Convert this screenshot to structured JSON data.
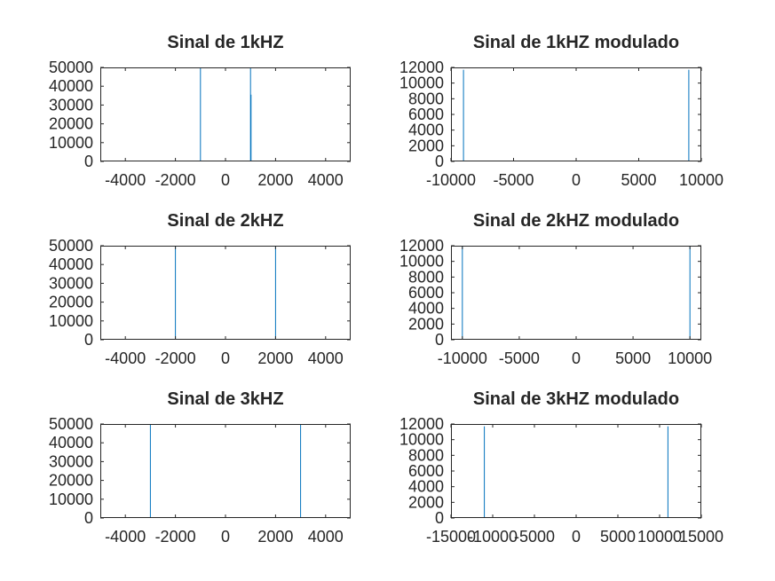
{
  "colors": {
    "line": "#0072bd",
    "axis": "#262626",
    "background": "#ffffff"
  },
  "chart_data": [
    {
      "type": "line",
      "title": "Sinal de 1kHZ",
      "xlabel": "",
      "ylabel": "",
      "xlim": [
        -5000,
        5000
      ],
      "ylim": [
        0,
        50000
      ],
      "grid": false,
      "xticks": [
        -4000,
        -2000,
        0,
        2000,
        4000
      ],
      "xtick_labels": [
        "-4000",
        "-2000",
        "0",
        "2000",
        "4000"
      ],
      "yticks": [
        0,
        10000,
        20000,
        30000,
        40000,
        50000
      ],
      "ytick_labels": [
        "0",
        "10000",
        "20000",
        "30000",
        "40000",
        "50000"
      ],
      "spikes": [
        {
          "x": -1000,
          "y": 50000
        },
        {
          "x": 1000,
          "y": 50000
        },
        {
          "x": 1020,
          "y": 35500
        }
      ]
    },
    {
      "type": "line",
      "title": "Sinal de 1kHZ modulado",
      "xlabel": "",
      "ylabel": "",
      "xlim": [
        -10000,
        10000
      ],
      "ylim": [
        0,
        12000
      ],
      "grid": false,
      "xticks": [
        -10000,
        -5000,
        0,
        5000,
        10000
      ],
      "xtick_labels": [
        "-10000",
        "-5000",
        "0",
        "5000",
        "10000"
      ],
      "yticks": [
        0,
        2000,
        4000,
        6000,
        8000,
        10000,
        12000
      ],
      "ytick_labels": [
        "0",
        "2000",
        "4000",
        "6000",
        "8000",
        "10000",
        "12000"
      ],
      "spikes": [
        {
          "x": -9000,
          "y": 11700
        },
        {
          "x": 9000,
          "y": 11700
        }
      ]
    },
    {
      "type": "line",
      "title": "Sinal de 2kHZ",
      "xlabel": "",
      "ylabel": "",
      "xlim": [
        -5000,
        5000
      ],
      "ylim": [
        0,
        50000
      ],
      "grid": false,
      "xticks": [
        -4000,
        -2000,
        0,
        2000,
        4000
      ],
      "xtick_labels": [
        "-4000",
        "-2000",
        "0",
        "2000",
        "4000"
      ],
      "yticks": [
        0,
        10000,
        20000,
        30000,
        40000,
        50000
      ],
      "ytick_labels": [
        "0",
        "10000",
        "20000",
        "30000",
        "40000",
        "50000"
      ],
      "spikes": [
        {
          "x": -2000,
          "y": 50000
        },
        {
          "x": 2000,
          "y": 50000
        }
      ]
    },
    {
      "type": "line",
      "title": "Sinal de 2kHZ modulado",
      "xlabel": "",
      "ylabel": "",
      "xlim": [
        -11000,
        11000
      ],
      "ylim": [
        0,
        12000
      ],
      "grid": false,
      "xticks": [
        -10000,
        -5000,
        0,
        5000,
        10000
      ],
      "xtick_labels": [
        "-10000",
        "-5000",
        "0",
        "5000",
        "10000"
      ],
      "yticks": [
        0,
        2000,
        4000,
        6000,
        8000,
        10000,
        12000
      ],
      "ytick_labels": [
        "0",
        "2000",
        "4000",
        "6000",
        "8000",
        "10000",
        "12000"
      ],
      "spikes": [
        {
          "x": -10000,
          "y": 12000
        },
        {
          "x": 10000,
          "y": 12000
        }
      ]
    },
    {
      "type": "line",
      "title": "Sinal de 3kHZ",
      "xlabel": "",
      "ylabel": "",
      "xlim": [
        -5000,
        5000
      ],
      "ylim": [
        0,
        50000
      ],
      "grid": false,
      "xticks": [
        -4000,
        -2000,
        0,
        2000,
        4000
      ],
      "xtick_labels": [
        "-4000",
        "-2000",
        "0",
        "2000",
        "4000"
      ],
      "yticks": [
        0,
        10000,
        20000,
        30000,
        40000,
        50000
      ],
      "ytick_labels": [
        "0",
        "10000",
        "20000",
        "30000",
        "40000",
        "50000"
      ],
      "spikes": [
        {
          "x": -3000,
          "y": 50000
        },
        {
          "x": 3000,
          "y": 50000
        }
      ]
    },
    {
      "type": "line",
      "title": "Sinal de 3kHZ modulado",
      "xlabel": "",
      "ylabel": "",
      "xlim": [
        -15000,
        15000
      ],
      "ylim": [
        0,
        12000
      ],
      "grid": false,
      "xticks": [
        -15000,
        -10000,
        -5000,
        0,
        5000,
        10000,
        15000
      ],
      "xtick_labels": [
        "-15000",
        "-10000",
        "-5000",
        "0",
        "5000",
        "10000",
        "15000"
      ],
      "yticks": [
        0,
        2000,
        4000,
        6000,
        8000,
        10000,
        12000
      ],
      "ytick_labels": [
        "0",
        "2000",
        "4000",
        "6000",
        "8000",
        "10000",
        "12000"
      ],
      "spikes": [
        {
          "x": -11000,
          "y": 11700
        },
        {
          "x": 11000,
          "y": 11700
        }
      ]
    }
  ]
}
